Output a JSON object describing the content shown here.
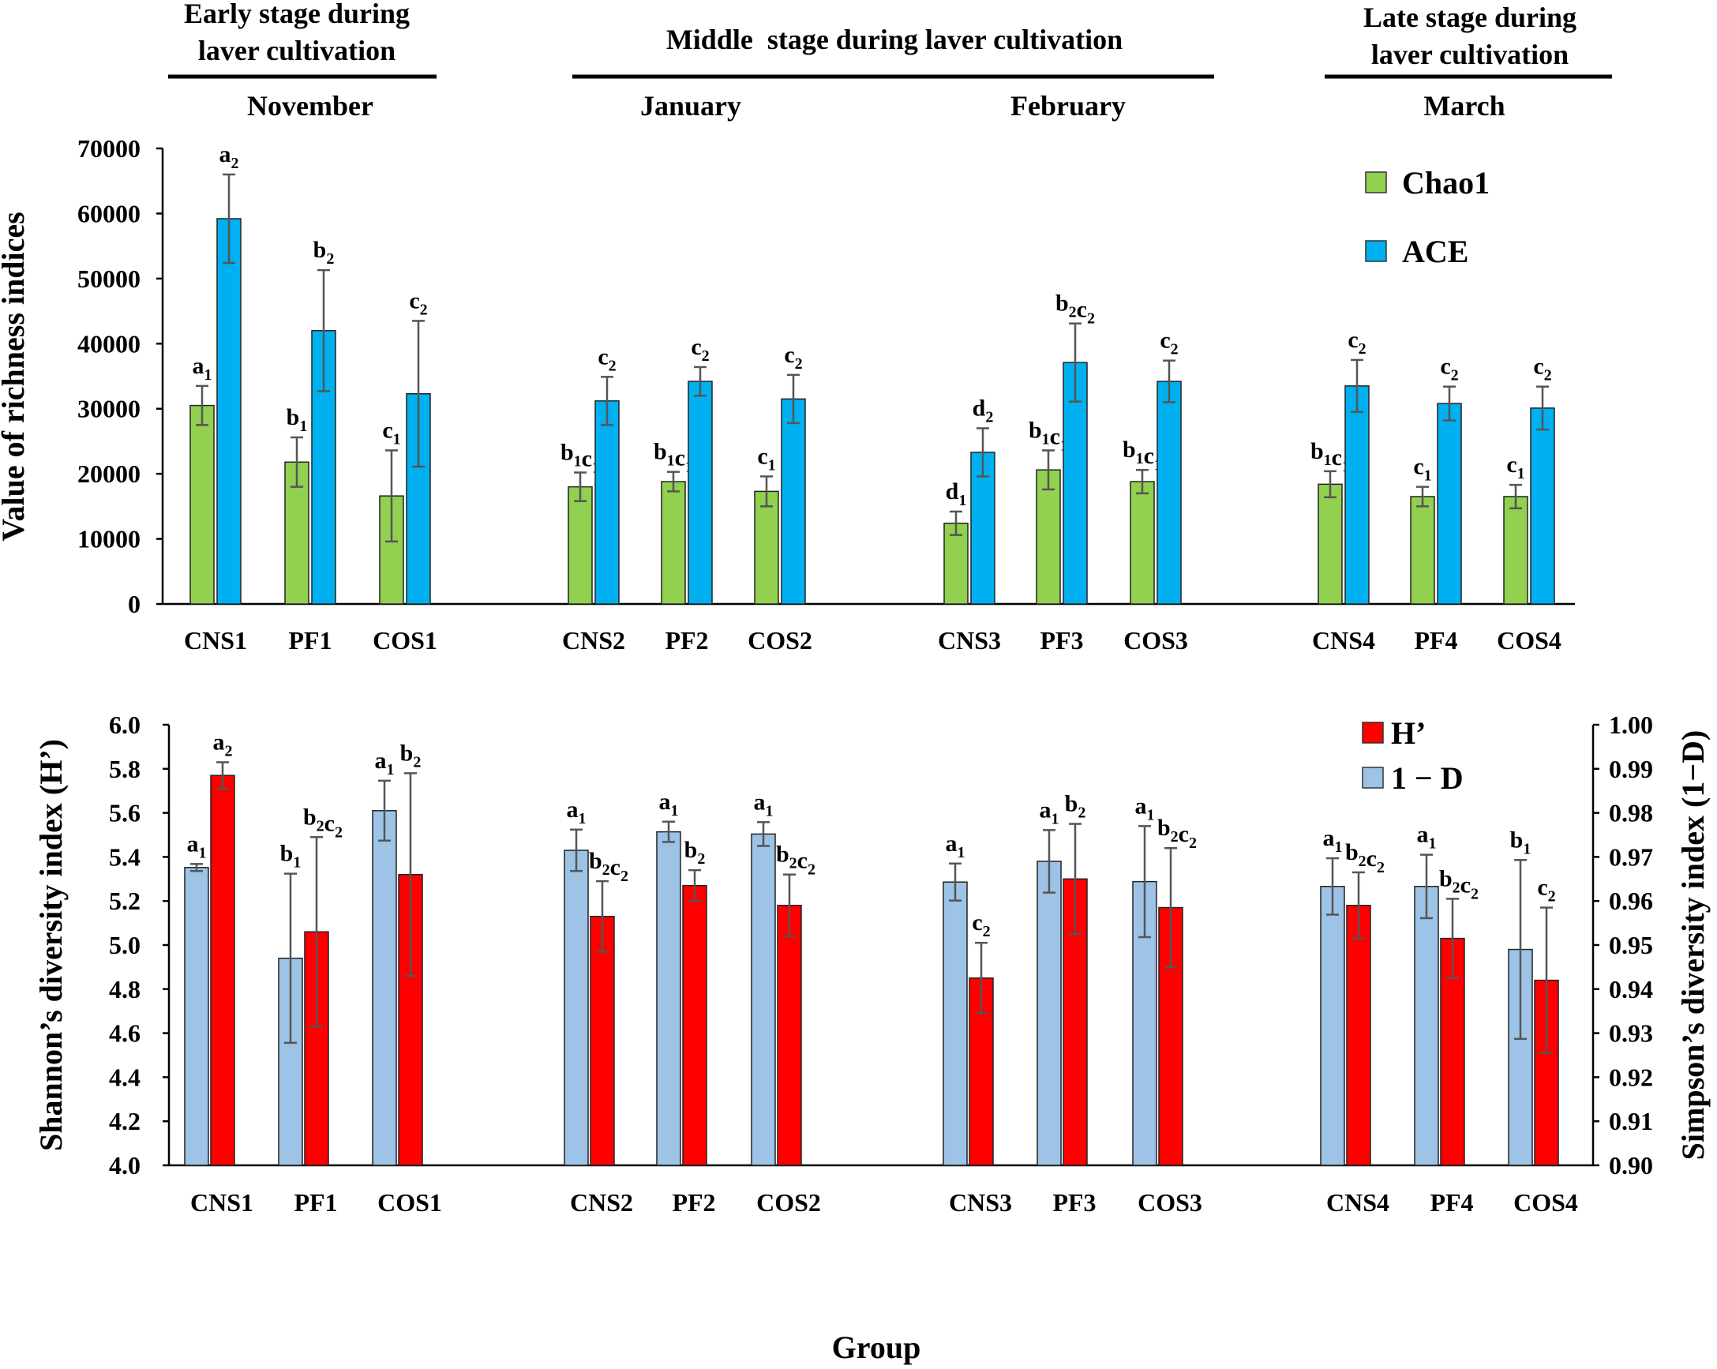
{
  "stage_headers": [
    {
      "text": [
        "Early stage during",
        "laver cultivation"
      ],
      "month": "November"
    },
    {
      "text": [
        "Middle  stage during laver cultivation"
      ],
      "months": [
        "January",
        "February"
      ]
    },
    {
      "text": [
        "Late stage during",
        "laver cultivation"
      ],
      "month": "March"
    }
  ],
  "x_axis_title": "Group",
  "colors": {
    "chao1": "#92d050",
    "ace": "#00b0f0",
    "h": "#ff0000",
    "simpson": "#9dc3e6",
    "axis": "#000000",
    "error": "#555555"
  },
  "chart_data": [
    {
      "type": "bar",
      "title": "",
      "ylabel": "Value of richness indices",
      "ylim": [
        0,
        70000
      ],
      "yticks": [
        0,
        10000,
        20000,
        30000,
        40000,
        50000,
        60000,
        70000
      ],
      "categories": [
        "CNS1",
        "PF1",
        "COS1",
        "CNS2",
        "PF2",
        "COS2",
        "CNS3",
        "PF3",
        "COS3",
        "CNS4",
        "PF4",
        "COS4"
      ],
      "legend": [
        "Chao1",
        "ACE"
      ],
      "series": [
        {
          "name": "Chao1",
          "values": [
            30500,
            21800,
            16600,
            18000,
            18800,
            17300,
            12400,
            20600,
            18800,
            18400,
            16500,
            16500
          ],
          "errors": [
            3000,
            3800,
            7000,
            2200,
            1500,
            2300,
            1800,
            3000,
            1800,
            2000,
            1500,
            1800
          ],
          "labels": [
            [
              "a",
              "1"
            ],
            [
              "b",
              "1"
            ],
            [
              "c",
              "1"
            ],
            [
              "b",
              "1",
              "c",
              "1"
            ],
            [
              "b",
              "1",
              "c",
              "1"
            ],
            [
              "c",
              "1"
            ],
            [
              "d",
              "1"
            ],
            [
              "b",
              "1",
              "c",
              "1"
            ],
            [
              "b",
              "1",
              "c",
              "1"
            ],
            [
              "b",
              "1",
              "c",
              "1"
            ],
            [
              "c",
              "1"
            ],
            [
              "c",
              "1"
            ]
          ]
        },
        {
          "name": "ACE",
          "values": [
            59200,
            42000,
            32300,
            31200,
            34200,
            31500,
            23300,
            37100,
            34200,
            33500,
            30800,
            30100
          ],
          "errors": [
            6800,
            9300,
            11200,
            3700,
            2200,
            3700,
            3700,
            6000,
            3200,
            4000,
            2600,
            3300
          ],
          "labels": [
            [
              "a",
              "2"
            ],
            [
              "b",
              "2"
            ],
            [
              "c",
              "2"
            ],
            [
              "c",
              "2"
            ],
            [
              "c",
              "2"
            ],
            [
              "c",
              "2"
            ],
            [
              "d",
              "2"
            ],
            [
              "b",
              "2",
              "c",
              "2"
            ],
            [
              "c",
              "2"
            ],
            [
              "c",
              "2"
            ],
            [
              "c",
              "2"
            ],
            [
              "c",
              "2"
            ]
          ]
        }
      ]
    },
    {
      "type": "bar",
      "title": "",
      "xlabel": "Group",
      "ylabel": "Shannon’s diversity index (H’)",
      "y2label": "Simpson’s diversity index (1−D)",
      "ylim": [
        4.0,
        6.0
      ],
      "yticks": [
        "4.0",
        "4.2",
        "4.4",
        "4.6",
        "4.8",
        "5.0",
        "5.2",
        "5.4",
        "5.6",
        "5.8",
        "6.0"
      ],
      "y2lim": [
        0.9,
        1.0
      ],
      "y2ticks": [
        "0.90",
        "0.91",
        "0.92",
        "0.93",
        "0.94",
        "0.95",
        "0.96",
        "0.97",
        "0.98",
        "0.99",
        "1.00"
      ],
      "categories": [
        "CNS1",
        "PF1",
        "COS1",
        "CNS2",
        "PF2",
        "COS2",
        "CNS3",
        "PF3",
        "COS3",
        "CNS4",
        "PF4",
        "COS4"
      ],
      "legend": [
        "H’",
        "1 − D"
      ],
      "series": [
        {
          "name": "1 − D",
          "axis": "right",
          "values": [
            0.9676,
            0.947,
            0.9805,
            0.9715,
            0.9757,
            0.9752,
            0.9643,
            0.969,
            0.9644,
            0.9633,
            0.9633,
            0.949
          ],
          "errors": [
            0.0008,
            0.0192,
            0.0068,
            0.0047,
            0.0023,
            0.0027,
            0.0042,
            0.0071,
            0.0126,
            0.0064,
            0.0072,
            0.0203
          ],
          "labels": [
            [
              "a",
              "1"
            ],
            [
              "b",
              "1"
            ],
            [
              "a",
              "1"
            ],
            [
              "a",
              "1"
            ],
            [
              "a",
              "1"
            ],
            [
              "a",
              "1"
            ],
            [
              "a",
              "1"
            ],
            [
              "a",
              "1"
            ],
            [
              "a",
              "1"
            ],
            [
              "a",
              "1"
            ],
            [
              "a",
              "1"
            ],
            [
              "b",
              "1"
            ]
          ]
        },
        {
          "name": "H’",
          "axis": "left",
          "values": [
            5.77,
            5.06,
            5.32,
            5.13,
            5.27,
            5.18,
            4.85,
            5.3,
            5.17,
            5.18,
            5.03,
            4.84
          ],
          "errors": [
            0.06,
            0.43,
            0.46,
            0.16,
            0.07,
            0.14,
            0.16,
            0.25,
            0.27,
            0.15,
            0.18,
            0.33
          ],
          "labels": [
            [
              "a",
              "2"
            ],
            [
              "b",
              "2",
              "c",
              "2"
            ],
            [
              "b",
              "2"
            ],
            [
              "b",
              "2",
              "c",
              "2"
            ],
            [
              "b",
              "2"
            ],
            [
              "b",
              "2",
              "c",
              "2"
            ],
            [
              "c",
              "2"
            ],
            [
              "b",
              "2"
            ],
            [
              "b",
              "2",
              "c",
              "2"
            ],
            [
              "b",
              "2",
              "c",
              "2"
            ],
            [
              "b",
              "2",
              "c",
              "2"
            ],
            [
              "c",
              "2"
            ]
          ]
        }
      ]
    }
  ]
}
